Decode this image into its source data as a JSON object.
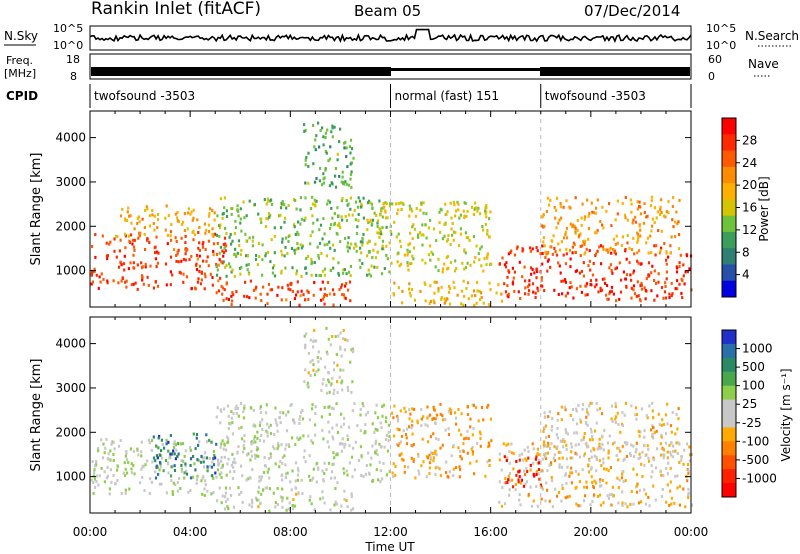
{
  "header": {
    "station": "Rankin Inlet (fitACF)",
    "beam": "Beam 05",
    "date": "07/Dec/2014"
  },
  "strips": {
    "nsky_label": "N.Sky",
    "nsky_ticks": [
      "10^5",
      "10^0"
    ],
    "nsearch_label": "N.Search",
    "nsearch_ticks": [
      "10^5",
      "10^0"
    ],
    "freq_label_1": "Freq.",
    "freq_label_2": "[MHz]",
    "freq_ticks": [
      "18",
      "8"
    ],
    "nave_label": "Nave",
    "nave_ticks": [
      "60",
      "0"
    ],
    "cpid_label": "CPID",
    "cpid_segments": [
      {
        "label": "twofsound -3503",
        "start": 0,
        "end": 12
      },
      {
        "label": "normal (fast) 151",
        "start": 12,
        "end": 18
      },
      {
        "label": "twofsound -3503",
        "start": 18,
        "end": 24
      }
    ]
  },
  "colorbars": {
    "power": {
      "label": "Power [dB]",
      "ticks": [
        "28",
        "24",
        "20",
        "16",
        "12",
        "8",
        "4"
      ],
      "colors": [
        "#ff0000",
        "#ff2a00",
        "#ff5a00",
        "#ff8c00",
        "#ffb000",
        "#d6c400",
        "#6fc33a",
        "#3a9f5a",
        "#2e7f74",
        "#2450a8",
        "#0000e0"
      ]
    },
    "velocity": {
      "label": "Velocity [m s⁻¹]",
      "ticks": [
        "1000",
        "500",
        "100",
        "25",
        "-25",
        "-100",
        "-500",
        "-1000"
      ],
      "colors": [
        "#2030c8",
        "#2a70a8",
        "#2a8a66",
        "#4aa84a",
        "#8dcf4a",
        "#c8c8c8",
        "#c8c8c8",
        "#ffaa00",
        "#ff8000",
        "#ff5000",
        "#ff2000",
        "#ff0000"
      ]
    }
  },
  "chart_data": [
    {
      "type": "heatmap",
      "panel": "power",
      "ylabel": "Slant Range [km]",
      "ylim": [
        180,
        4600
      ],
      "yticks": [
        1000,
        2000,
        3000,
        4000
      ],
      "xlim": [
        0,
        24
      ],
      "xticks": [
        "00:00",
        "04:00",
        "08:00",
        "12:00",
        "16:00",
        "20:00",
        "00:00"
      ],
      "xlabel": "Time UT",
      "zlabel": "Power [dB]",
      "zlim": [
        0,
        30
      ],
      "regions": [
        {
          "t0": 0.0,
          "t1": 5.4,
          "r0": 600,
          "r1": 1900,
          "z": 26
        },
        {
          "t0": 1.0,
          "t1": 5.2,
          "r0": 1800,
          "r1": 2500,
          "z": 19
        },
        {
          "t0": 5.0,
          "t1": 10.5,
          "r0": 250,
          "r1": 800,
          "z": 26
        },
        {
          "t0": 5.0,
          "t1": 12.0,
          "r0": 900,
          "r1": 2700,
          "z": 12
        },
        {
          "t0": 11.0,
          "t1": 16.0,
          "r0": 1000,
          "r1": 2600,
          "z": 15
        },
        {
          "t0": 12.0,
          "t1": 16.5,
          "r0": 250,
          "r1": 800,
          "z": 18
        },
        {
          "t0": 16.3,
          "t1": 24.0,
          "r0": 350,
          "r1": 1600,
          "z": 27
        },
        {
          "t0": 18.0,
          "t1": 23.5,
          "r0": 1400,
          "r1": 2700,
          "z": 20
        },
        {
          "t0": 8.5,
          "t1": 10.5,
          "r0": 2900,
          "r1": 4400,
          "z": 10
        }
      ]
    },
    {
      "type": "heatmap",
      "panel": "velocity",
      "ylabel": "Slant Range [km]",
      "ylim": [
        180,
        4600
      ],
      "yticks": [
        1000,
        2000,
        3000,
        4000
      ],
      "xlim": [
        0,
        24
      ],
      "xticks": [
        "00:00",
        "04:00",
        "08:00",
        "12:00",
        "16:00",
        "20:00",
        "00:00"
      ],
      "xlabel": "Time UT",
      "zlabel": "Velocity [m s⁻¹]",
      "zlim": [
        -1000,
        1000
      ],
      "regions": [
        {
          "t0": 0.0,
          "t1": 5.4,
          "r0": 600,
          "r1": 1900,
          "z": 80
        },
        {
          "t0": 2.5,
          "t1": 5.0,
          "r0": 1000,
          "r1": 2000,
          "z": 700
        },
        {
          "t0": 5.0,
          "t1": 10.5,
          "r0": 250,
          "r1": 800,
          "z": 60
        },
        {
          "t0": 5.0,
          "t1": 12.0,
          "r0": 900,
          "r1": 2700,
          "z": 90
        },
        {
          "t0": 12.0,
          "t1": 16.0,
          "r0": 1000,
          "r1": 2700,
          "z": -300
        },
        {
          "t0": 16.3,
          "t1": 24.0,
          "r0": 350,
          "r1": 1800,
          "z": -200
        },
        {
          "t0": 16.5,
          "t1": 18.0,
          "r0": 800,
          "r1": 1500,
          "z": -900
        },
        {
          "t0": 18.0,
          "t1": 23.5,
          "r0": 1400,
          "r1": 2700,
          "z": -150
        },
        {
          "t0": 8.5,
          "t1": 10.5,
          "r0": 2900,
          "r1": 4400,
          "z": 40
        }
      ]
    }
  ]
}
